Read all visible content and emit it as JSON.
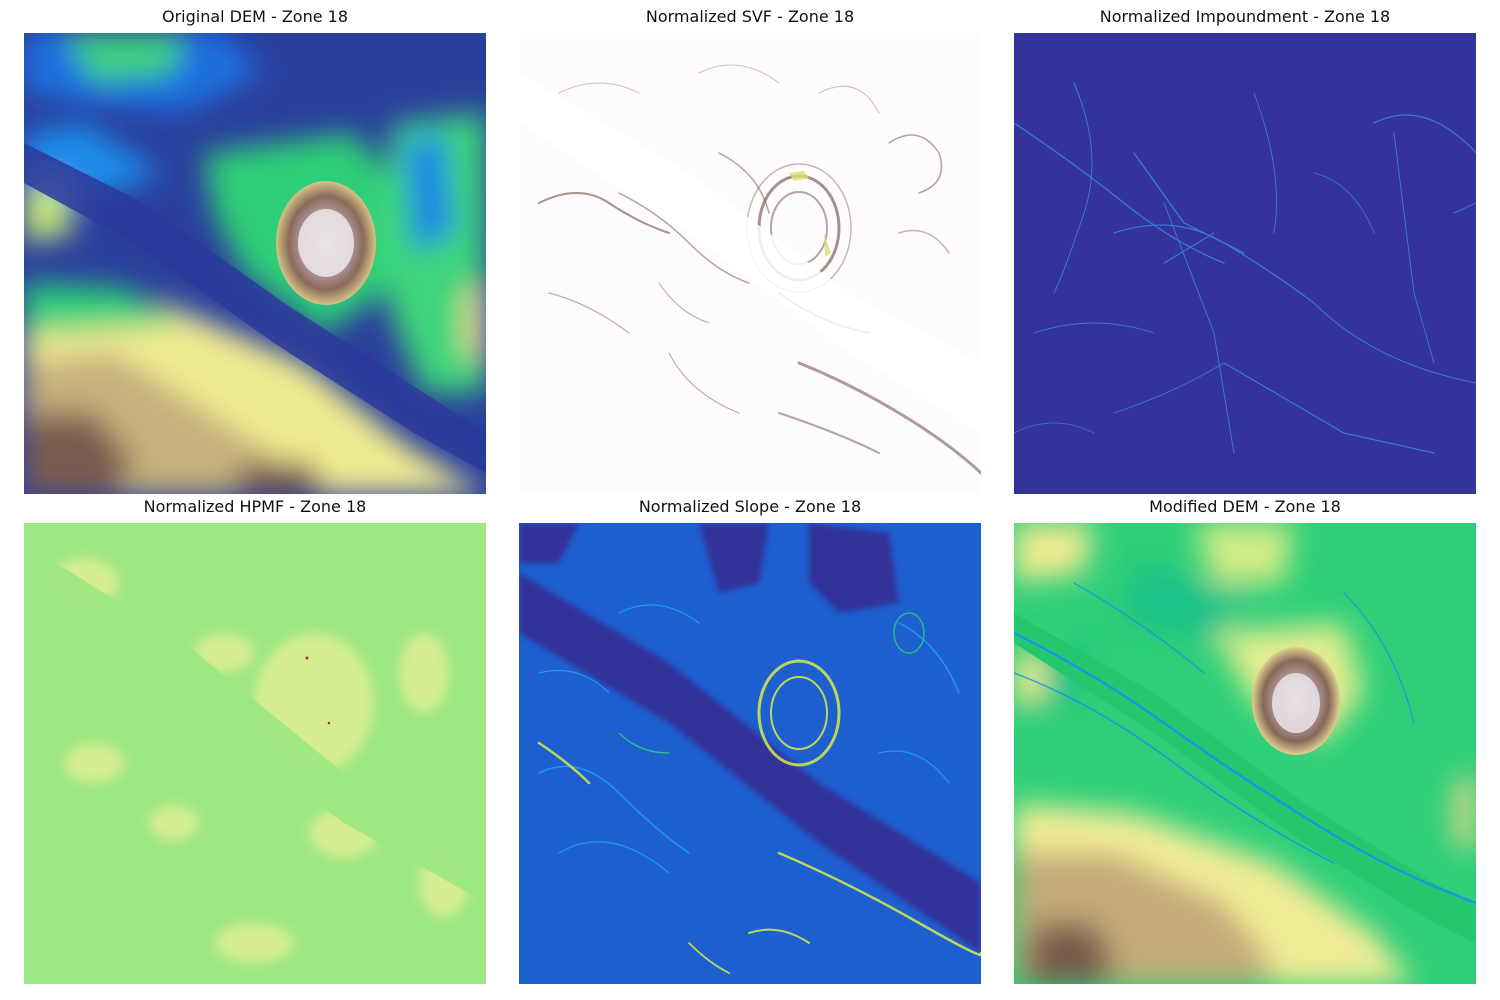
{
  "figure": {
    "panels": [
      {
        "title": "Original DEM - Zone 18",
        "colormap": "terrain"
      },
      {
        "title": "Normalized SVF - Zone 18",
        "colormap": "pink-brown"
      },
      {
        "title": "Normalized Impoundment - Zone 18",
        "colormap": "terrain"
      },
      {
        "title": "Normalized HPMF - Zone 18",
        "colormap": "terrain"
      },
      {
        "title": "Normalized Slope - Zone 18",
        "colormap": "terrain"
      },
      {
        "title": "Modified DEM - Zone 18",
        "colormap": "terrain"
      }
    ]
  },
  "colors": {
    "deep_blue": "#333399",
    "blue": "#1e5fd0",
    "cyan": "#00a6f0",
    "green": "#2ecf78",
    "light_green": "#9ce882",
    "yellow": "#f4ef94",
    "tan": "#c8b078",
    "brown": "#7a5a4c",
    "white": "#ffffff"
  }
}
